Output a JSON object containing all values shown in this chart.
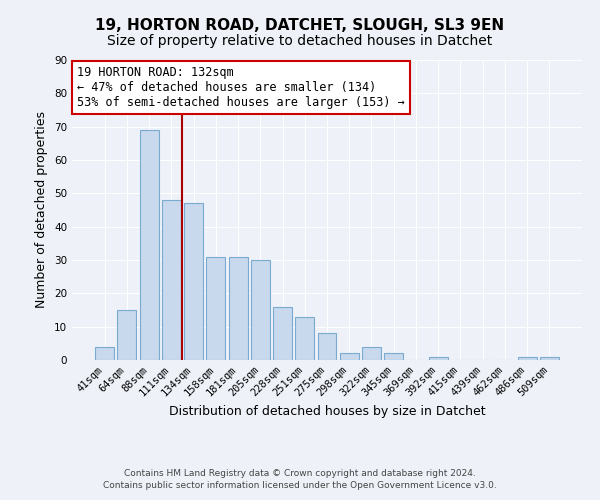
{
  "title": "19, HORTON ROAD, DATCHET, SLOUGH, SL3 9EN",
  "subtitle": "Size of property relative to detached houses in Datchet",
  "xlabel": "Distribution of detached houses by size in Datchet",
  "ylabel": "Number of detached properties",
  "bar_labels": [
    "41sqm",
    "64sqm",
    "88sqm",
    "111sqm",
    "134sqm",
    "158sqm",
    "181sqm",
    "205sqm",
    "228sqm",
    "251sqm",
    "275sqm",
    "298sqm",
    "322sqm",
    "345sqm",
    "369sqm",
    "392sqm",
    "415sqm",
    "439sqm",
    "462sqm",
    "486sqm",
    "509sqm"
  ],
  "bar_values": [
    4,
    15,
    69,
    48,
    47,
    31,
    31,
    30,
    16,
    13,
    8,
    2,
    4,
    2,
    0,
    1,
    0,
    0,
    0,
    1,
    1
  ],
  "bar_color": "#c8d8ed",
  "bar_edge_color": "#7aaad0",
  "ylim": [
    0,
    90
  ],
  "yticks": [
    0,
    10,
    20,
    30,
    40,
    50,
    60,
    70,
    80,
    90
  ],
  "vline_index": 3.5,
  "vline_color": "#aa0000",
  "annotation_title": "19 HORTON ROAD: 132sqm",
  "annotation_line1": "← 47% of detached houses are smaller (134)",
  "annotation_line2": "53% of semi-detached houses are larger (153) →",
  "annotation_box_color": "#cc0000",
  "footer1": "Contains HM Land Registry data © Crown copyright and database right 2024.",
  "footer2": "Contains public sector information licensed under the Open Government Licence v3.0.",
  "bg_color": "#eef2f8",
  "plot_bg_color": "#eef2f8",
  "grid_color": "#ffffff",
  "title_fontsize": 11,
  "subtitle_fontsize": 10,
  "label_fontsize": 9,
  "tick_fontsize": 7.5,
  "footer_fontsize": 6.5,
  "ann_fontsize": 8.5
}
